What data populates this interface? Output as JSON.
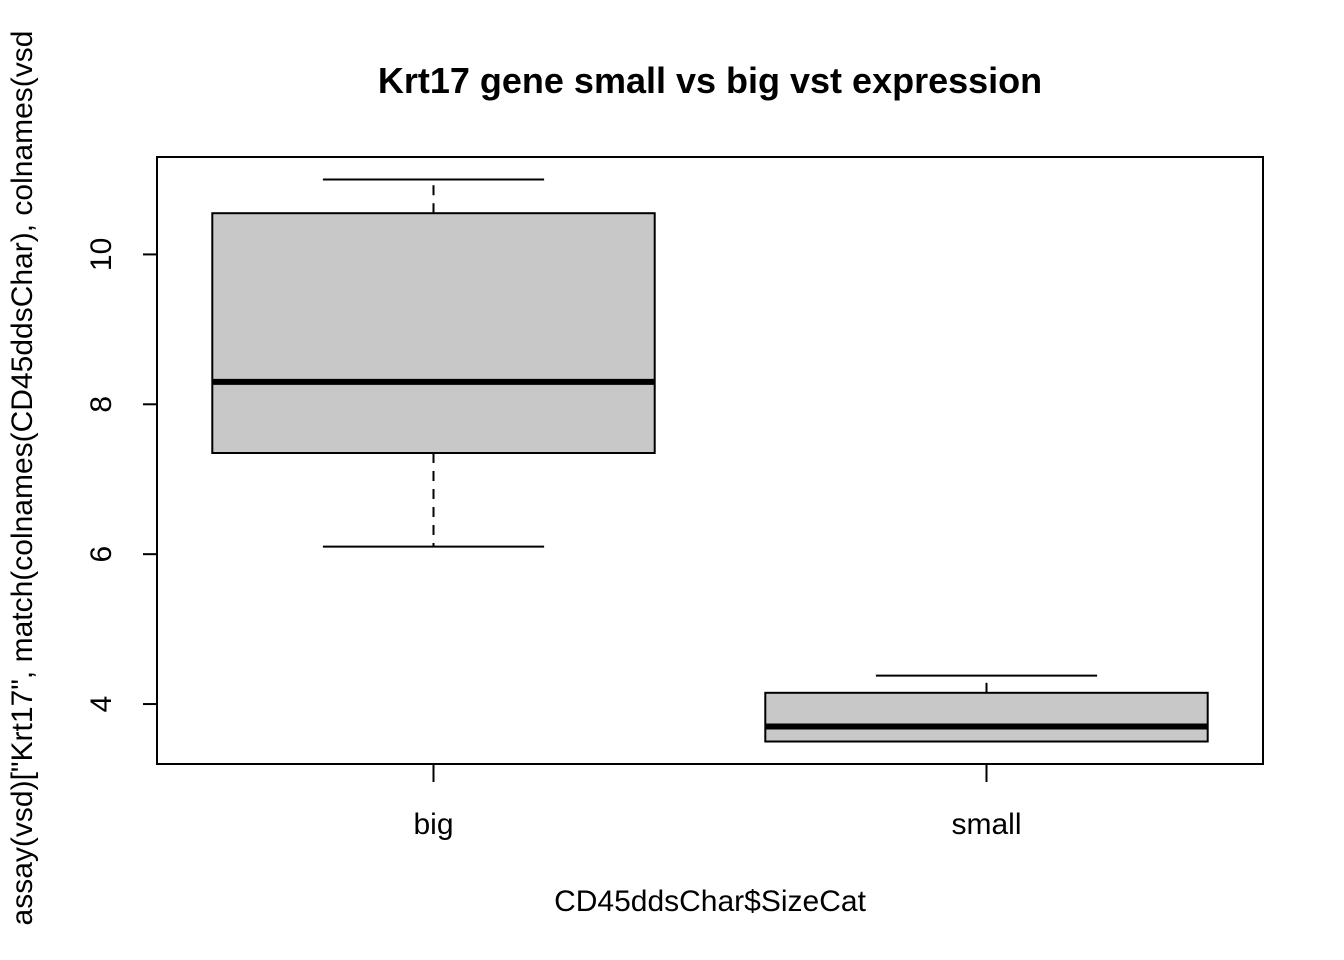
{
  "chart_data": {
    "type": "boxplot",
    "title": "Krt17 gene small vs big vst expression",
    "xlabel": "CD45ddsChar$SizeCat",
    "ylabel": "assay(vsd)[\"Krt17\", match(colnames(CD45ddsChar), colnames(vsd",
    "categories": [
      "big",
      "small"
    ],
    "ylim": [
      3.2,
      11.3
    ],
    "yticks": [
      4,
      6,
      8,
      10
    ],
    "grid": false,
    "box_fill": "#c8c8c8",
    "boxes": [
      {
        "category": "big",
        "whisker_low": 6.1,
        "q1": 7.35,
        "median": 8.3,
        "q3": 10.55,
        "whisker_high": 11.0
      },
      {
        "category": "small",
        "whisker_low": 3.5,
        "q1": 3.5,
        "median": 3.7,
        "q3": 4.15,
        "whisker_high": 4.38
      }
    ]
  }
}
